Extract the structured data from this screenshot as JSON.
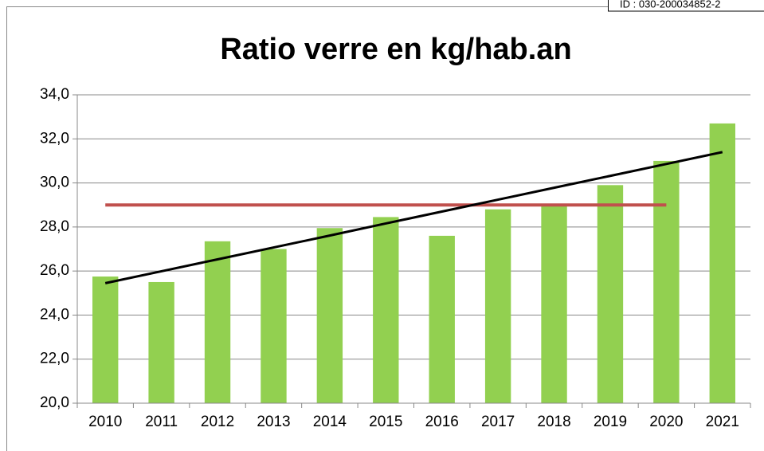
{
  "stamp": "ID : 030-200034852-2",
  "chart_data": {
    "type": "bar",
    "title": "Ratio verre en kg/hab.an",
    "categories": [
      "2010",
      "2011",
      "2012",
      "2013",
      "2014",
      "2015",
      "2016",
      "2017",
      "2018",
      "2019",
      "2020",
      "2021"
    ],
    "values": [
      25.75,
      25.5,
      27.35,
      27.0,
      27.95,
      28.45,
      27.6,
      28.8,
      29.0,
      29.9,
      31.0,
      32.7
    ],
    "color": "#92d050",
    "lines": [
      {
        "color": "#c0504d",
        "values": [
          29.0,
          29.0,
          29.0,
          29.0,
          29.0,
          29.0,
          29.0,
          29.0,
          29.0,
          29.0,
          29.0,
          null
        ]
      },
      {
        "color": "#000000",
        "values": [
          25.45,
          25.99,
          26.53,
          27.07,
          27.61,
          28.16,
          28.7,
          29.24,
          29.78,
          30.32,
          30.86,
          31.4
        ]
      }
    ],
    "ylim": [
      20,
      34
    ],
    "yticks": [
      {
        "value": 20,
        "label": "20,0"
      },
      {
        "value": 22,
        "label": "22,0"
      },
      {
        "value": 24,
        "label": "24,0"
      },
      {
        "value": 26,
        "label": "26,0"
      },
      {
        "value": 28,
        "label": "28,0"
      },
      {
        "value": 30,
        "label": "30,0"
      },
      {
        "value": 32,
        "label": "32,0"
      },
      {
        "value": 34,
        "label": "34,0"
      }
    ],
    "grid": true
  }
}
